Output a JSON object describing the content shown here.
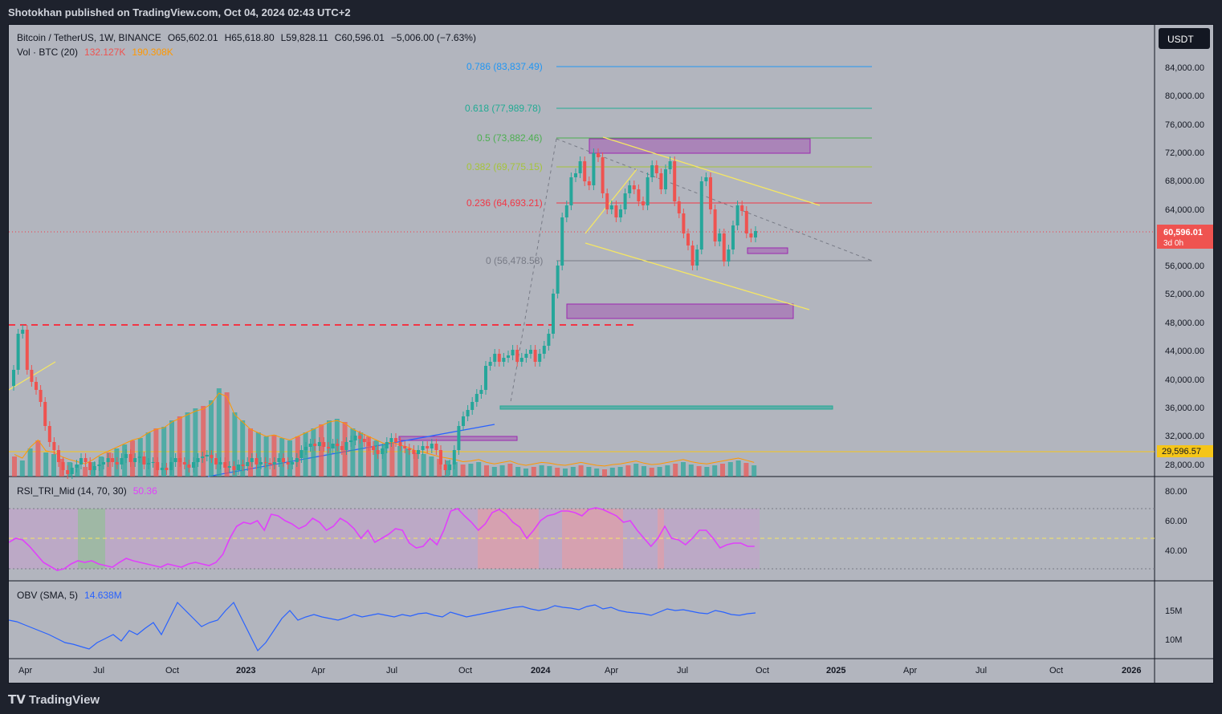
{
  "header": {
    "publisher": "Shotokhan published on TradingView.com, Oct 04, 2024 02:43 UTC+2"
  },
  "legend": {
    "symbol": "Bitcoin / TetherUS, 1W, BINANCE",
    "open": "O65,602.01",
    "high": "H65,618.80",
    "low": "L59,828.11",
    "close": "C60,596.01",
    "change": "−5,006.00 (−7.63%)",
    "vol_name": "Vol · BTC (20)",
    "vol_value": "132.127K",
    "vol_ma": "190.308K"
  },
  "currency_button": "USDT",
  "price_axis": [
    "84,000.00",
    "80,000.00",
    "76,000.00",
    "72,000.00",
    "68,000.00",
    "64,000.00",
    "56,000.00",
    "52,000.00",
    "48,000.00",
    "44,000.00",
    "40,000.00",
    "36,000.00",
    "32,000.00",
    "28,000.00"
  ],
  "current_price": {
    "value": "60,596.01",
    "countdown": "3d 0h"
  },
  "support_price": "29,596.57",
  "fib_levels": [
    {
      "label": "0.786 (83,837.49)",
      "color": "#2196f3"
    },
    {
      "label": "0.618 (77,989.78)",
      "color": "#22ab94"
    },
    {
      "label": "0.5 (73,882.46)",
      "color": "#4caf50"
    },
    {
      "label": "0.382 (69,775.15)",
      "color": "#a5c43a"
    },
    {
      "label": "0.236 (64,693.21)",
      "color": "#f23645"
    },
    {
      "label": "0 (56,478.58)",
      "color": "#787b86"
    }
  ],
  "rsi": {
    "title": "RSI_TRI_Mid (14, 70, 30)",
    "value": "50.36",
    "axis": [
      "80.00",
      "60.00",
      "40.00"
    ]
  },
  "obv": {
    "title": "OBV (SMA, 5)",
    "value": "14.638M",
    "axis": [
      "15M",
      "10M"
    ]
  },
  "time_axis": [
    "Apr",
    "Jul",
    "Oct",
    "2023",
    "Apr",
    "Jul",
    "Oct",
    "2024",
    "Apr",
    "Jul",
    "Oct",
    "2025",
    "Apr",
    "Jul",
    "Oct",
    "2026"
  ],
  "footer": {
    "brand": "TradingView"
  },
  "colors": {
    "up": "#26a69a",
    "down": "#ef5350",
    "rsi_line": "#e040fb",
    "obv_line": "#2962ff",
    "fib_box": "#9c27b0"
  }
}
